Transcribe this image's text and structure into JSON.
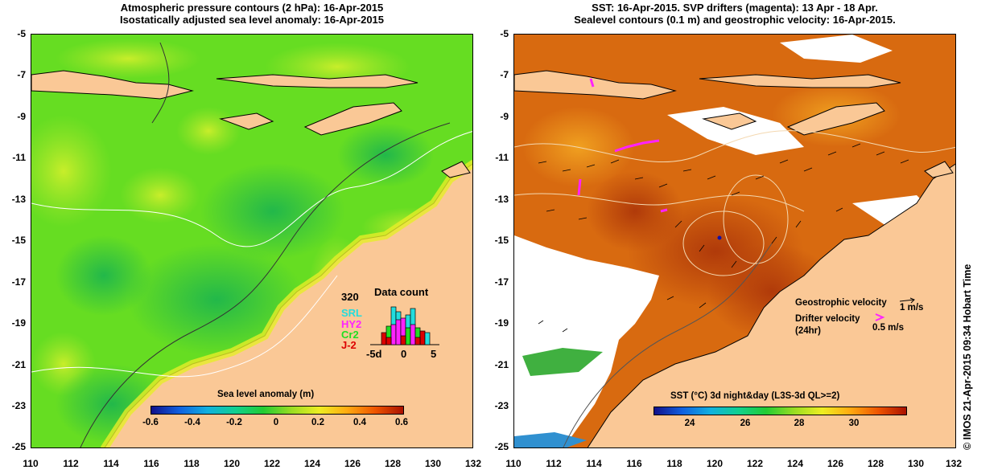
{
  "left_panel": {
    "title_line1": "Atmospheric pressure contours (2 hPa): 16-Apr-2015",
    "title_line2": "Isostatically adjusted sea level anomaly: 16-Apr-2015",
    "y_labels": [
      "-5",
      "-7",
      "-9",
      "-11",
      "-13",
      "-15",
      "-17",
      "-19",
      "-21",
      "-23",
      "-25"
    ],
    "x_labels": [
      "110",
      "112",
      "114",
      "116",
      "118",
      "120",
      "122",
      "124",
      "126",
      "128",
      "130",
      "132"
    ],
    "colorbar": {
      "title": "Sea level anomaly (m)",
      "ticks": [
        "-0.6",
        "-0.4",
        "-0.2",
        "0",
        "0.2",
        "0.4",
        "0.6"
      ]
    },
    "data_count": {
      "title": "Data count",
      "max_label": "320",
      "sat_labels": [
        "SRL",
        "HY2",
        "Cr2",
        "J-2"
      ],
      "sat_colors": [
        "#22dddd",
        "#ff22ff",
        "#22dd22",
        "#dd0000"
      ],
      "x_ticks": [
        "-5d",
        "0",
        "5"
      ]
    }
  },
  "right_panel": {
    "title_line1": "SST: 16-Apr-2015. SVP drifters (magenta): 13 Apr - 18 Apr.",
    "title_line2": "Sealevel contours (0.1 m) and geostrophic velocity: 16-Apr-2015.",
    "y_labels": [
      "-5",
      "-7",
      "-9",
      "-11",
      "-13",
      "-15",
      "-17",
      "-19",
      "-21",
      "-23",
      "-25"
    ],
    "x_labels": [
      "110",
      "112",
      "114",
      "116",
      "118",
      "120",
      "122",
      "124",
      "126",
      "128",
      "130",
      "132"
    ],
    "colorbar": {
      "title": "SST (°C) 3d night&day (L3S-3d QL>=2)",
      "ticks": [
        "24",
        "26",
        "28",
        "30"
      ]
    },
    "legend": {
      "geo_label": "Geostrophic velocity",
      "geo_scale": "1 m/s",
      "drifter_label": "Drifter velocity",
      "drifter_sub": "(24hr)",
      "drifter_scale": "0.5 m/s",
      "drifter_color": "#ff22ff"
    }
  },
  "credit": "© IMOS 21-Apr-2015 09:34 Hobart Time",
  "colors": {
    "land": "#fac896",
    "sla_base": "#66dd22",
    "sst_base": "#d86a10"
  }
}
